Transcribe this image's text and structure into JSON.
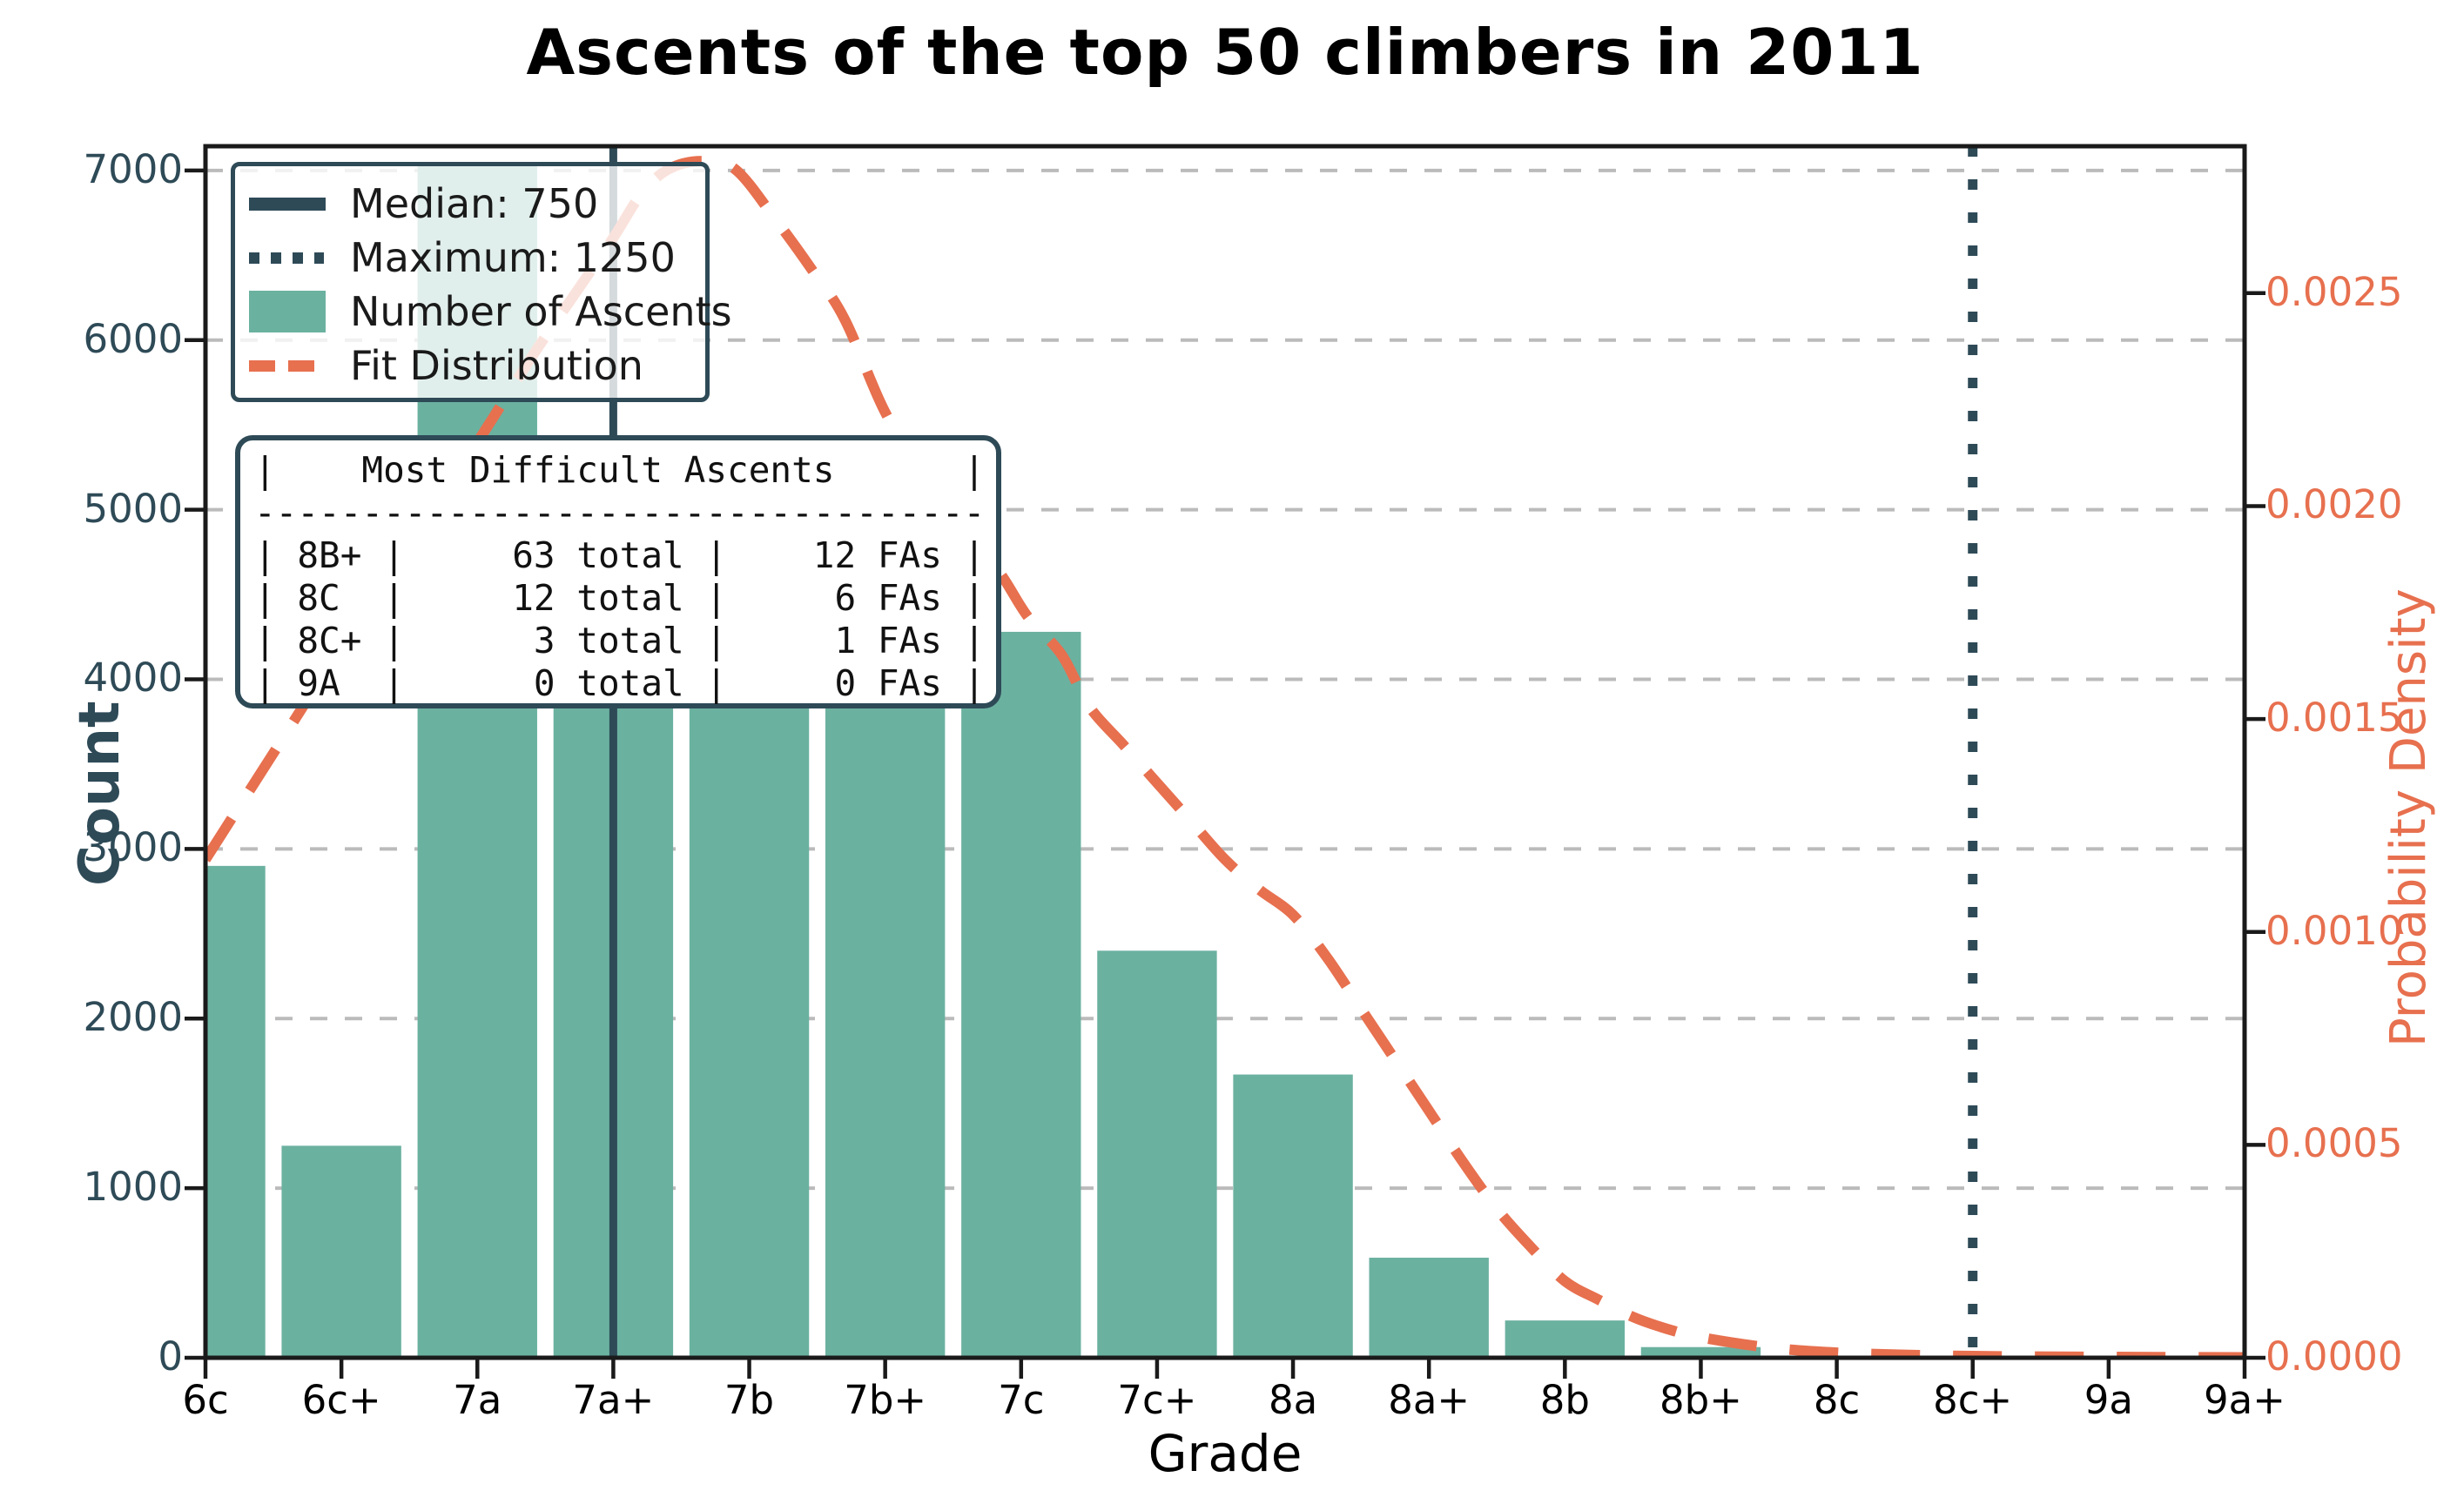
{
  "title": "Ascents of the top 50 climbers in 2011",
  "axes": {
    "x_label": "Grade",
    "y_left_label": "Count",
    "y_right_label": "Probability Density",
    "x_tick_labels": [
      "6c",
      "6c+",
      "7a",
      "7a+",
      "7b",
      "7b+",
      "7c",
      "7c+",
      "8a",
      "8a+",
      "8b",
      "8b+",
      "8c",
      "8c+",
      "9a",
      "9a+"
    ],
    "y_left_ticks": [
      {
        "value": 0,
        "label": "0"
      },
      {
        "value": 1000,
        "label": "1000"
      },
      {
        "value": 2000,
        "label": "2000"
      },
      {
        "value": 3000,
        "label": "3000"
      },
      {
        "value": 4000,
        "label": "4000"
      },
      {
        "value": 5000,
        "label": "5000"
      },
      {
        "value": 6000,
        "label": "6000"
      },
      {
        "value": 7000,
        "label": "7000"
      }
    ],
    "y_right_ticks": [
      {
        "value": 0.0,
        "label": "0.0000"
      },
      {
        "value": 0.0005,
        "label": "0.0005"
      },
      {
        "value": 0.001,
        "label": "0.0010"
      },
      {
        "value": 0.0015,
        "label": "0.0015"
      },
      {
        "value": 0.002,
        "label": "0.0020"
      },
      {
        "value": 0.0025,
        "label": "0.0025"
      }
    ],
    "grid": "dashed horizontal at each left-axis tick"
  },
  "legend": {
    "items": [
      {
        "label": "Median: 750",
        "swatch": "solid-line"
      },
      {
        "label": "Maximum: 1250",
        "swatch": "dotted-line"
      },
      {
        "label": "Number of Ascents",
        "swatch": "patch"
      },
      {
        "label": "Fit Distribution",
        "swatch": "dashed-line"
      }
    ]
  },
  "info_table": {
    "header": "|    Most Difficult Ascents      |",
    "divider": "----------------------------------",
    "rows": [
      "| 8B+ |     63 total |    12 FAs |",
      "| 8C  |     12 total |     6 FAs |",
      "| 8C+ |      3 total |     1 FAs |",
      "| 9A  |      0 total |     0 FAs |"
    ]
  },
  "chart_data": {
    "type": "bar",
    "subtype": "histogram-with-fit-line",
    "title": "Ascents of the top 50 climbers in 2011",
    "xlabel": "Grade",
    "ylabel": "Count",
    "ylabel_right": "Probability Density",
    "categories": [
      "6c",
      "6c+",
      "7a",
      "7a+",
      "7b",
      "7b+",
      "7c",
      "7c+",
      "8a",
      "8a+",
      "8b",
      "8b+",
      "8c",
      "8c+",
      "9a",
      "9a+"
    ],
    "values": [
      2900,
      1250,
      7050,
      5300,
      5150,
      4650,
      4280,
      2400,
      1670,
      590,
      220,
      63,
      12,
      3,
      0,
      0
    ],
    "ylim_left": [
      0,
      7143
    ],
    "ylim_right": [
      0,
      0.002845
    ],
    "median_line": {
      "label": "Median: 750",
      "value": 750,
      "at_category": "7a+",
      "x_index": 3,
      "style": "solid"
    },
    "maximum_line": {
      "label": "Maximum: 1250",
      "value": 1250,
      "at_category": "8c+",
      "x_index": 13,
      "style": "dotted"
    },
    "fit_curve": {
      "name": "Fit Distribution",
      "axis": "right",
      "points": [
        [
          0,
          0.00117
        ],
        [
          0.5,
          0.00142
        ],
        [
          1,
          0.00167
        ],
        [
          1.5,
          0.00191
        ],
        [
          2,
          0.00215
        ],
        [
          2.4,
          0.00235
        ],
        [
          2.7,
          0.00249
        ],
        [
          3,
          0.00263
        ],
        [
          3.2,
          0.00273
        ],
        [
          3.4,
          0.00279
        ],
        [
          3.65,
          0.00281
        ],
        [
          3.9,
          0.00279
        ],
        [
          4.2,
          0.00267
        ],
        [
          4.45,
          0.00256
        ],
        [
          4.7,
          0.00244
        ],
        [
          5,
          0.00222
        ],
        [
          5.3,
          0.00207
        ],
        [
          5.6,
          0.00194
        ],
        [
          5.85,
          0.00184
        ],
        [
          6.05,
          0.00174
        ],
        [
          6.3,
          0.00165
        ],
        [
          6.5,
          0.00153
        ],
        [
          6.75,
          0.00144
        ],
        [
          7,
          0.00135
        ],
        [
          7.25,
          0.00126
        ],
        [
          7.5,
          0.00117
        ],
        [
          7.75,
          0.0011
        ],
        [
          8,
          0.00104
        ],
        [
          8.25,
          0.00094
        ],
        [
          8.5,
          0.00082
        ],
        [
          8.75,
          0.0007
        ],
        [
          9,
          0.00058
        ],
        [
          9.25,
          0.00046
        ],
        [
          9.5,
          0.00035
        ],
        [
          9.75,
          0.00026
        ],
        [
          10,
          0.00018
        ],
        [
          10.25,
          0.000136
        ],
        [
          10.5,
          9.6e-05
        ],
        [
          10.75,
          6.8e-05
        ],
        [
          11,
          4.8e-05
        ],
        [
          11.5,
          2.4e-05
        ],
        [
          12,
          1.2e-05
        ],
        [
          12.5,
          7e-06
        ],
        [
          13,
          4e-06
        ],
        [
          14,
          2e-06
        ],
        [
          15,
          1e-06
        ]
      ]
    },
    "colors": {
      "bars": "#6BB1A0",
      "fit_line": "#E7704F",
      "dark_slate": "#2E4A57",
      "grid": "#BBBBBB",
      "spine": "#1a1a1a",
      "left_tick_text": "#2E4A57",
      "right_tick_text": "#E7704F",
      "x_tick_text": "#000000"
    },
    "legend_position": "upper left",
    "grid_on": true
  }
}
